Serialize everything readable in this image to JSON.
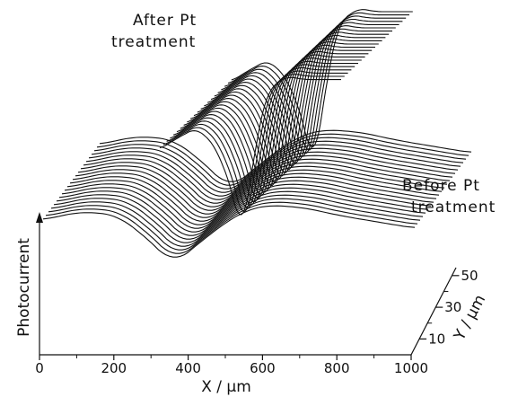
{
  "chart_data": {
    "type": "line",
    "title": "",
    "plot": "3D waterfall (stacked line scans)",
    "xlabel": "X / μm",
    "ylabel": "Photocurrent",
    "zlabel": "Y / μm",
    "xlim": [
      0,
      1000
    ],
    "x_ticks": [
      "0",
      "200",
      "400",
      "600",
      "800",
      "1000"
    ],
    "y_ticks": [
      "10",
      "30",
      "50"
    ],
    "grid": false,
    "annotations": [
      "After Pt\ntreatment",
      "Before Pt\ntreatment"
    ],
    "datasets": [
      {
        "name": "After Pt treatment",
        "scan_count": 22,
        "x": [
          0,
          100,
          200,
          300,
          400,
          450,
          500,
          550,
          600,
          700,
          800,
          1000
        ],
        "y": [
          0.55,
          0.62,
          0.68,
          0.58,
          0.3,
          0.0,
          0.35,
          0.72,
          0.92,
          1.0,
          0.98,
          0.98
        ]
      },
      {
        "name": "Before Pt treatment",
        "scan_count": 22,
        "x": [
          0,
          100,
          200,
          300,
          350,
          400,
          500,
          550,
          600,
          700,
          800,
          1000
        ],
        "y": [
          0.6,
          0.7,
          0.66,
          0.3,
          0.05,
          0.25,
          0.6,
          0.72,
          0.78,
          0.75,
          0.65,
          0.5
        ]
      }
    ]
  },
  "axes": {
    "xlabel": "X / μm",
    "ylabel": "Photocurrent",
    "zlabel": "Y / μm",
    "x_ticks": [
      "0",
      "200",
      "400",
      "600",
      "800",
      "1000"
    ],
    "z_ticks": [
      "10",
      "30",
      "50"
    ]
  },
  "annotations": {
    "after_line1": "After Pt",
    "after_line2": "treatment",
    "before_line1": "Before Pt",
    "before_line2": "treatment"
  },
  "colors": {
    "ink": "#111111",
    "background": "#ffffff"
  }
}
